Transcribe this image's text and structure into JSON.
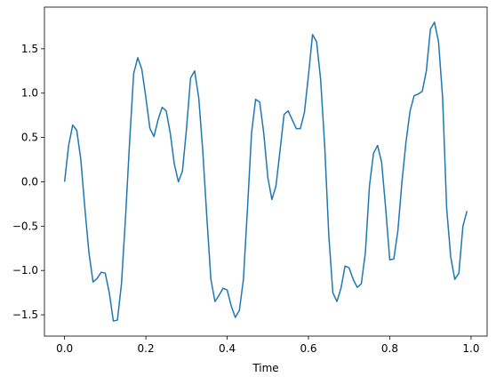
{
  "chart_data": {
    "type": "line",
    "xlabel": "Time",
    "x": [
      0.0,
      0.01,
      0.02,
      0.03,
      0.04,
      0.05,
      0.06,
      0.07,
      0.08,
      0.09,
      0.1,
      0.11,
      0.12,
      0.13,
      0.14,
      0.15,
      0.16,
      0.17,
      0.18,
      0.19,
      0.2,
      0.21,
      0.22,
      0.23,
      0.24,
      0.25,
      0.26,
      0.27,
      0.28,
      0.29,
      0.3,
      0.31,
      0.32,
      0.33,
      0.34,
      0.35,
      0.36,
      0.37,
      0.38,
      0.39,
      0.4,
      0.41,
      0.42,
      0.43,
      0.44,
      0.45,
      0.46,
      0.47,
      0.48,
      0.49,
      0.5,
      0.51,
      0.52,
      0.53,
      0.54,
      0.55,
      0.56,
      0.57,
      0.58,
      0.59,
      0.6,
      0.61,
      0.62,
      0.63,
      0.64,
      0.65,
      0.66,
      0.67,
      0.68,
      0.69,
      0.7,
      0.71,
      0.72,
      0.73,
      0.74,
      0.75,
      0.76,
      0.77,
      0.78,
      0.79,
      0.8,
      0.81,
      0.82,
      0.83,
      0.84,
      0.85,
      0.86,
      0.87,
      0.88,
      0.89,
      0.9,
      0.91,
      0.92,
      0.93,
      0.94,
      0.95,
      0.96,
      0.97,
      0.98,
      0.99
    ],
    "series": [
      {
        "color": "#1f77b4",
        "values": [
          0,
          0.41,
          0.64,
          0.58,
          0.25,
          -0.3,
          -0.8,
          -1.13,
          -1.09,
          -1.02,
          -1.03,
          -1.25,
          -1.57,
          -1.56,
          -1.15,
          -0.4,
          0.45,
          1.22,
          1.4,
          1.27,
          0.95,
          0.6,
          0.51,
          0.7,
          0.84,
          0.8,
          0.55,
          0.2,
          0,
          0.12,
          0.6,
          1.17,
          1.25,
          0.95,
          0.35,
          -0.4,
          -1.1,
          -1.35,
          -1.28,
          -1.2,
          -1.22,
          -1.4,
          -1.53,
          -1.45,
          -1.1,
          -0.3,
          0.55,
          0.93,
          0.9,
          0.55,
          0.05,
          -0.2,
          -0.05,
          0.35,
          0.76,
          0.8,
          0.7,
          0.6,
          0.6,
          0.78,
          1.2,
          1.66,
          1.58,
          1.15,
          0.4,
          -0.6,
          -1.25,
          -1.35,
          -1.2,
          -0.95,
          -0.97,
          -1.1,
          -1.19,
          -1.15,
          -0.8,
          -0.05,
          0.32,
          0.41,
          0.22,
          -0.3,
          -0.88,
          -0.87,
          -0.55,
          0.0,
          0.45,
          0.8,
          0.97,
          0.99,
          1.02,
          1.25,
          1.72,
          1.8,
          1.58,
          0.95,
          -0.3,
          -0.85,
          -1.1,
          -1.03,
          -0.5,
          -0.33
        ]
      }
    ],
    "xlim": [
      -0.0495,
      1.0395
    ],
    "xticks": [
      {
        "value": 0,
        "label": "0.0"
      },
      0.2,
      0.4,
      0.6,
      0.8,
      {
        "value": 1,
        "label": "1.0"
      }
    ],
    "ylim": [
      -1.74,
      1.97
    ],
    "yticks": [
      {
        "value": -1.5,
        "label": "−1.5"
      },
      {
        "value": -1,
        "label": "−1.0"
      },
      {
        "value": -0.5,
        "label": "−0.5"
      },
      {
        "value": 0,
        "label": "0.0"
      },
      0.5,
      {
        "value": 1,
        "label": "1.0"
      },
      1.5
    ],
    "grid": false
  }
}
